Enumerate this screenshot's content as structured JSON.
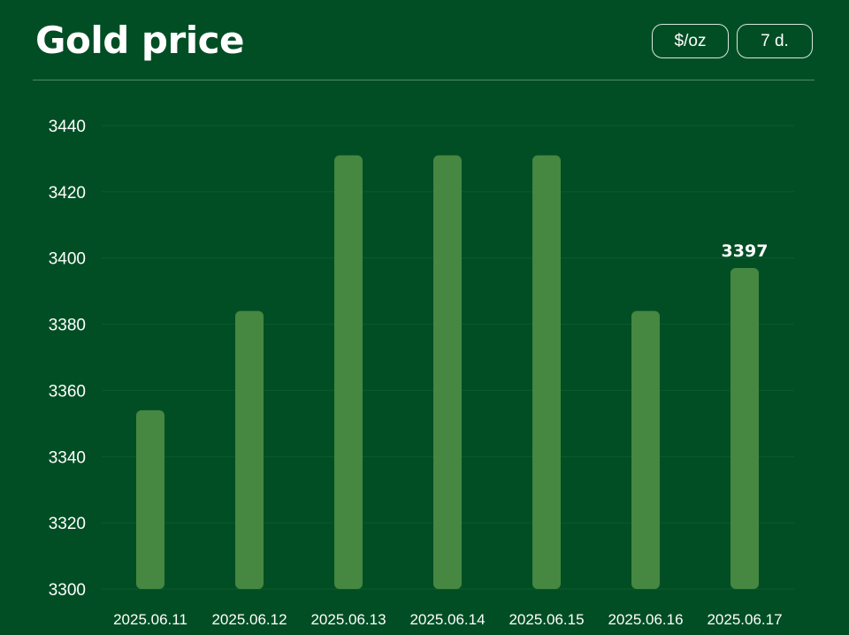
{
  "header": {
    "title": "Gold price",
    "unit_label": "$/oz",
    "range_label": "7 d."
  },
  "colors": {
    "background": "#024e24",
    "bar": "#468741",
    "grid": "#0d5a2c",
    "text": "#ffffff"
  },
  "chart_data": {
    "type": "bar",
    "title": "Gold price",
    "xlabel": "",
    "ylabel": "",
    "categories": [
      "2025.06.11",
      "2025.06.12",
      "2025.06.13",
      "2025.06.14",
      "2025.06.15",
      "2025.06.16",
      "2025.06.17"
    ],
    "series": [
      {
        "values": [
          3354,
          3384,
          3431,
          3431,
          3431,
          3384,
          3397
        ]
      }
    ],
    "ylim": [
      3300,
      3440
    ],
    "yticks": [
      3300,
      3320,
      3340,
      3360,
      3380,
      3400,
      3420,
      3440
    ],
    "highlight": {
      "category": "2025.06.17",
      "label": "3397"
    },
    "grid": true,
    "legend": "none"
  }
}
